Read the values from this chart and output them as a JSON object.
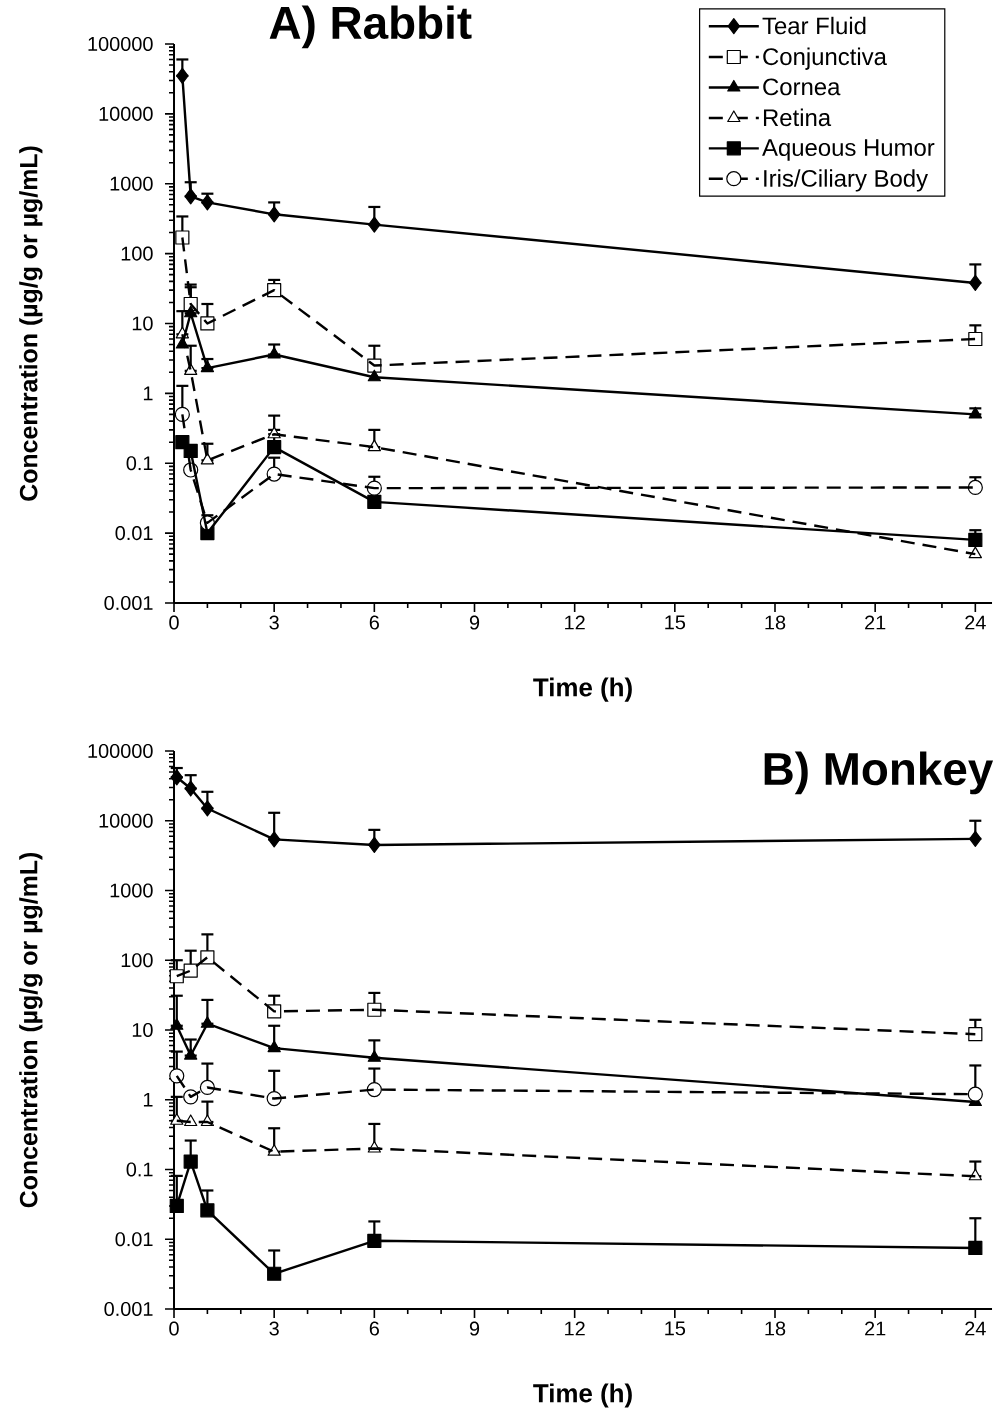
{
  "chart_data": [
    {
      "type": "line",
      "title": "A) Rabbit",
      "xlabel": "Time (h)",
      "ylabel": "Concentration (µg/g or µg/mL)",
      "log": "y",
      "legend": "top right",
      "xlim": [
        0,
        24.5
      ],
      "xticks": [
        0,
        3,
        6,
        9,
        12,
        15,
        18,
        21,
        24
      ],
      "ylim": [
        0.001,
        100000
      ],
      "yticks": [
        0.001,
        0.01,
        0.1,
        1,
        10,
        100,
        1000,
        10000,
        100000
      ],
      "x": [
        0.25,
        0.5,
        1,
        3,
        6,
        24
      ],
      "series": [
        {
          "name": "Tear Fluid",
          "color": "#000000",
          "marker": "diamond",
          "line_style": "solid",
          "values": [
            35000,
            660,
            540,
            365,
            260,
            38
          ],
          "errors": [
            [
              35000,
              60000
            ],
            [
              660,
              1050
            ],
            [
              540,
              720
            ],
            [
              365,
              540
            ],
            [
              260,
              465
            ],
            [
              38,
              70
            ]
          ]
        },
        {
          "name": "Conjunctiva",
          "color": "#000000",
          "marker": "square-open",
          "line_style": "dashed",
          "values": [
            170,
            19,
            10,
            30,
            2.5,
            6
          ],
          "errors": [
            [
              170,
              340
            ],
            [
              19,
              36
            ],
            [
              10,
              19
            ],
            [
              30,
              42
            ],
            [
              2.5,
              4.8
            ],
            [
              6,
              9.4
            ]
          ]
        },
        {
          "name": "Cornea",
          "color": "#000000",
          "marker": "triangle",
          "line_style": "solid",
          "values": [
            5,
            14,
            2.3,
            3.6,
            1.7,
            0.5
          ],
          "errors": [
            null,
            [
              14,
              33
            ],
            [
              2.3,
              3.1
            ],
            [
              3.6,
              5
            ],
            null,
            [
              0.5,
              0.61
            ]
          ]
        },
        {
          "name": "Retina",
          "color": "#000000",
          "marker": "triangle-open",
          "line_style": "dashed",
          "values": [
            7,
            2.1,
            0.11,
            0.26,
            0.17,
            0.005
          ],
          "errors": [
            [
              7,
              15
            ],
            [
              2.1,
              4.8
            ],
            [
              0.11,
              0.19
            ],
            [
              0.26,
              0.48
            ],
            [
              0.17,
              0.3
            ],
            null
          ]
        },
        {
          "name": "Aqueous Humor",
          "color": "#000000",
          "marker": "square",
          "line_style": "solid",
          "values": [
            0.2,
            0.15,
            0.01,
            0.17,
            0.028,
            0.008
          ],
          "errors": [
            null,
            null,
            null,
            [
              0.17,
              0.3
            ],
            null,
            [
              0.008,
              0.011
            ]
          ]
        },
        {
          "name": "Iris/Ciliary Body",
          "color": "#000000",
          "marker": "circle-open",
          "line_style": "dashed",
          "values": [
            0.5,
            0.08,
            0.014,
            0.07,
            0.044,
            0.045
          ],
          "errors": [
            [
              0.5,
              1.28
            ],
            null,
            [
              0.014,
              0.018
            ],
            [
              0.07,
              0.12
            ],
            [
              0.044,
              0.064
            ],
            [
              0.045,
              0.063
            ]
          ]
        }
      ]
    },
    {
      "type": "line",
      "title": "B) Monkey",
      "xlabel": "Time (h)",
      "ylabel": "Concentration (µg/g or µg/mL)",
      "log": "y",
      "xlim": [
        0,
        24.5
      ],
      "xticks": [
        0,
        3,
        6,
        9,
        12,
        15,
        18,
        21,
        24
      ],
      "ylim": [
        0.001,
        100000
      ],
      "yticks": [
        0.001,
        0.01,
        0.1,
        1,
        10,
        100,
        1000,
        10000,
        100000
      ],
      "x": [
        0.083,
        0.5,
        1,
        3,
        6,
        24
      ],
      "series": [
        {
          "color": "#000000",
          "marker": "diamond",
          "line_style": "solid",
          "values": [
            42000,
            29000,
            15000,
            5400,
            4500,
            5500
          ],
          "errors": [
            [
              42000,
              57000
            ],
            [
              29000,
              45000
            ],
            [
              15000,
              26000
            ],
            [
              5400,
              13000
            ],
            [
              4500,
              7400
            ],
            [
              5500,
              10000
            ]
          ]
        },
        {
          "color": "#000000",
          "marker": "square-open",
          "line_style": "dashed",
          "values": [
            59,
            71,
            110,
            18.5,
            19.5,
            8.7
          ],
          "errors": [
            [
              59,
              100
            ],
            [
              71,
              137
            ],
            [
              110,
              235
            ],
            [
              18.5,
              31
            ],
            [
              19.5,
              34
            ],
            [
              8.7,
              14
            ]
          ]
        },
        {
          "color": "#000000",
          "marker": "triangle",
          "line_style": "solid",
          "values": [
            11.5,
            4.3,
            12.3,
            5.5,
            4,
            0.93
          ],
          "errors": [
            [
              11.5,
              31
            ],
            [
              4.3,
              7.3
            ],
            [
              12.3,
              27
            ],
            [
              5.5,
              11.5
            ],
            [
              4,
              7.1
            ],
            null
          ]
        },
        {
          "color": "#000000",
          "marker": "triangle-open",
          "line_style": "dashed",
          "values": [
            0.5,
            0.48,
            0.48,
            0.18,
            0.2,
            0.08
          ],
          "errors": [
            [
              0.5,
              1.1
            ],
            null,
            [
              0.48,
              0.94
            ],
            [
              0.18,
              0.39
            ],
            [
              0.2,
              0.45
            ],
            [
              0.08,
              0.13
            ]
          ]
        },
        {
          "color": "#000000",
          "marker": "square",
          "line_style": "solid",
          "values": [
            0.03,
            0.13,
            0.026,
            0.0032,
            0.0095,
            0.0075
          ],
          "errors": [
            [
              0.03,
              0.081
            ],
            [
              0.13,
              0.26
            ],
            [
              0.026,
              0.05
            ],
            [
              0.0032,
              0.0069
            ],
            [
              0.0095,
              0.018
            ],
            [
              0.0075,
              0.02
            ]
          ]
        },
        {
          "color": "#000000",
          "marker": "circle-open",
          "line_style": "dashed",
          "values": [
            2.2,
            1.1,
            1.5,
            1.04,
            1.4,
            1.2
          ],
          "errors": [
            [
              2.2,
              4.9
            ],
            null,
            [
              1.5,
              3.3
            ],
            [
              1.04,
              2.6
            ],
            [
              1.4,
              2.8
            ],
            [
              1.2,
              3.1
            ]
          ]
        }
      ]
    }
  ]
}
